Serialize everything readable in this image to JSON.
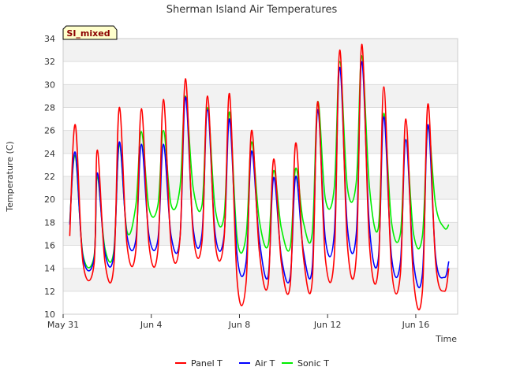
{
  "chart_data": {
    "type": "line",
    "title": "Sherman Island Air Temperatures",
    "xlabel": "Time",
    "ylabel": "Temperature (C)",
    "badge": "SI_mixed",
    "xlim": [
      0,
      17.9
    ],
    "ylim": [
      10,
      34
    ],
    "yticks": [
      10,
      12,
      14,
      16,
      18,
      20,
      22,
      24,
      26,
      28,
      30,
      32,
      34
    ],
    "xticks": [
      {
        "value": 0,
        "label": "May 31"
      },
      {
        "value": 4,
        "label": "Jun 4"
      },
      {
        "value": 8,
        "label": "Jun 8"
      },
      {
        "value": 12,
        "label": "Jun 12"
      },
      {
        "value": 16,
        "label": "Jun 16"
      }
    ],
    "grid": true,
    "legend_position": "bottom",
    "colors": {
      "panel": "#ff0000",
      "air": "#0000ff",
      "sonic": "#00ee00",
      "band": "#f2f2f2",
      "grid": "#dddddd"
    },
    "series": [
      {
        "name": "Panel T",
        "color": "#ff0000",
        "x": [
          0.3,
          0.55,
          0.9,
          1.4,
          1.55,
          1.9,
          2.3,
          2.55,
          2.9,
          3.3,
          3.55,
          3.9,
          4.3,
          4.55,
          4.9,
          5.3,
          5.55,
          5.9,
          6.3,
          6.55,
          6.9,
          7.3,
          7.55,
          7.9,
          8.3,
          8.55,
          8.9,
          9.3,
          9.55,
          9.9,
          10.3,
          10.55,
          10.9,
          11.3,
          11.55,
          11.9,
          12.3,
          12.55,
          12.9,
          13.3,
          13.55,
          13.9,
          14.3,
          14.55,
          14.9,
          15.3,
          15.55,
          15.9,
          16.3,
          16.55,
          16.9,
          17.3,
          17.5
        ],
        "y": [
          16.8,
          26.5,
          14.5,
          14.3,
          24.3,
          14.5,
          14.2,
          28.0,
          16.0,
          15.6,
          27.9,
          16.0,
          15.6,
          28.7,
          16.0,
          16.5,
          30.5,
          17.0,
          16.3,
          29.0,
          16.2,
          16.5,
          29.2,
          12.8,
          12.7,
          26.0,
          15.5,
          12.6,
          23.5,
          14.5,
          12.5,
          24.9,
          15.0,
          12.8,
          28.5,
          14.8,
          15.0,
          33.0,
          16.0,
          15.0,
          33.5,
          16.0,
          14.0,
          29.8,
          14.0,
          13.5,
          27.0,
          13.0,
          12.0,
          28.3,
          14.5,
          12.0,
          14.0
        ]
      },
      {
        "name": "Air T",
        "color": "#0000ff",
        "x": [
          0.3,
          0.55,
          0.9,
          1.4,
          1.55,
          1.9,
          2.3,
          2.55,
          2.9,
          3.3,
          3.55,
          3.9,
          4.3,
          4.55,
          4.9,
          5.3,
          5.55,
          5.9,
          6.3,
          6.55,
          6.9,
          7.3,
          7.55,
          7.9,
          8.3,
          8.55,
          8.9,
          9.3,
          9.55,
          9.9,
          10.3,
          10.55,
          10.9,
          11.3,
          11.55,
          11.9,
          12.3,
          12.55,
          12.9,
          13.3,
          13.55,
          13.9,
          14.3,
          14.55,
          14.9,
          15.3,
          15.55,
          15.9,
          16.3,
          16.55,
          16.9,
          17.3,
          17.5
        ],
        "y": [
          17.8,
          24.1,
          15.0,
          14.8,
          22.3,
          15.3,
          15.2,
          25.0,
          16.8,
          16.5,
          24.8,
          16.8,
          16.5,
          24.8,
          16.8,
          16.6,
          28.9,
          17.5,
          17.0,
          27.8,
          17.0,
          16.8,
          27.0,
          15.0,
          14.5,
          24.2,
          16.5,
          13.3,
          21.9,
          15.0,
          13.2,
          22.0,
          15.5,
          14.0,
          27.8,
          16.5,
          17.0,
          31.5,
          17.5,
          17.0,
          32.0,
          17.5,
          14.8,
          27.2,
          15.0,
          14.5,
          25.2,
          14.5,
          13.5,
          26.5,
          15.0,
          13.2,
          14.6
        ]
      },
      {
        "name": "Sonic T",
        "color": "#00ee00",
        "x": [
          0.3,
          0.55,
          0.9,
          1.4,
          1.55,
          1.9,
          2.3,
          2.55,
          2.9,
          3.3,
          3.55,
          3.9,
          4.3,
          4.55,
          4.9,
          5.3,
          5.55,
          5.9,
          6.3,
          6.55,
          6.9,
          7.3,
          7.55,
          7.9,
          8.3,
          8.55,
          8.9,
          9.3,
          9.55,
          9.9,
          10.3,
          10.55,
          10.9,
          11.3,
          11.55,
          11.9,
          12.3,
          12.55,
          12.9,
          13.3,
          13.55,
          13.9,
          14.3,
          14.55,
          14.9,
          15.3,
          15.55,
          15.9,
          16.3,
          16.55,
          16.9,
          17.3,
          17.5
        ],
        "y": [
          18.0,
          23.8,
          15.2,
          15.0,
          22.0,
          15.7,
          15.5,
          24.8,
          17.2,
          19.5,
          25.9,
          19.2,
          19.5,
          26.0,
          19.5,
          21.0,
          29.0,
          21.0,
          19.5,
          28.0,
          19.2,
          18.5,
          27.6,
          16.5,
          16.8,
          25.0,
          18.2,
          16.0,
          22.5,
          17.5,
          15.8,
          22.7,
          18.0,
          17.0,
          28.5,
          20.0,
          21.0,
          32.0,
          21.0,
          21.5,
          32.5,
          21.0,
          17.5,
          27.5,
          18.0,
          17.0,
          25.2,
          17.0,
          16.8,
          26.3,
          19.5,
          17.5,
          17.8
        ]
      }
    ]
  }
}
